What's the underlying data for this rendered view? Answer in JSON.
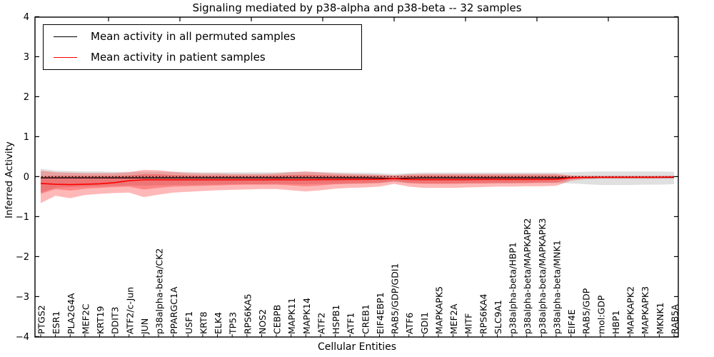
{
  "title": "Signaling mediated by p38-alpha and p38-beta -- 32 samples",
  "axes": {
    "x_label": "Cellular Entities",
    "y_label": "Inferred Activity",
    "y_ticks": [
      {
        "value": 4,
        "label": "4"
      },
      {
        "value": 3,
        "label": "3"
      },
      {
        "value": 2,
        "label": "2"
      },
      {
        "value": 1,
        "label": "1"
      },
      {
        "value": 0,
        "label": "0"
      },
      {
        "value": -1,
        "label": "−1"
      },
      {
        "value": -2,
        "label": "−2"
      },
      {
        "value": -3,
        "label": "−3"
      },
      {
        "value": -4,
        "label": "−4"
      }
    ]
  },
  "legend": {
    "entries": [
      {
        "label": "Mean activity in all permuted samples",
        "color": "#000000"
      },
      {
        "label": "Mean activity in patient samples",
        "color": "#ff0000"
      }
    ]
  },
  "colors": {
    "permuted_line": "#000000",
    "patient_line": "#ff0000",
    "permuted_band": "rgba(0,0,0,0.12)",
    "patient_band_outer": "rgba(255,0,0,0.28)",
    "patient_band_inner": "rgba(255,0,0,0.27)",
    "zero_line": "#000000",
    "frame": "#000000"
  },
  "chart_data": {
    "type": "line",
    "title": "Signaling mediated by p38-alpha and p38-beta -- 32 samples",
    "xlabel": "Cellular Entities",
    "ylabel": "Inferred Activity",
    "ylim": [
      -4,
      4
    ],
    "zero_line_dotted": true,
    "legend_position": "upper left",
    "grid": false,
    "categories": [
      "PTGS2",
      "ESR1",
      "PLA2G4A",
      "MEF2C",
      "KRT19",
      "DDIT3",
      "ATF2/c-Jun",
      "JUN",
      "p38alpha-beta/CK2",
      "PPARGC1A",
      "USF1",
      "KRT8",
      "ELK4",
      "TP53",
      "RPS6KA5",
      "NOS2",
      "CEBPB",
      "MAPK11",
      "MAPK14",
      "ATF2",
      "HSPB1",
      "ATF1",
      "CREB1",
      "EIF4EBP1",
      "RAB5/GDP/GDI1",
      "ATF6",
      "GDI1",
      "MAPKAPK5",
      "MEF2A",
      "MITF",
      "RPS6KA4",
      "SLC9A1",
      "p38alpha-beta/HBP1",
      "p38alpha-beta/MAPKAPK2",
      "p38alpha-beta/MAPKAPK3",
      "p38alpha-beta/MNK1",
      "EIF4E",
      "RAB5/GDP",
      "mol:GDP",
      "HBP1",
      "MAPKAPK2",
      "MAPKAPK3",
      "MKNK1",
      "RAB5A"
    ],
    "series": [
      {
        "name": "Mean activity in all permuted samples",
        "color": "#000000",
        "values": [
          -0.03,
          -0.03,
          -0.03,
          -0.03,
          -0.03,
          -0.03,
          -0.03,
          -0.03,
          -0.03,
          -0.03,
          -0.03,
          -0.03,
          -0.03,
          -0.03,
          -0.03,
          -0.03,
          -0.03,
          -0.03,
          -0.03,
          -0.03,
          -0.03,
          -0.03,
          -0.03,
          -0.035,
          -0.045,
          -0.035,
          -0.03,
          -0.03,
          -0.03,
          -0.03,
          -0.03,
          -0.03,
          -0.03,
          -0.03,
          -0.03,
          -0.03,
          -0.025,
          -0.025,
          -0.02,
          -0.02,
          -0.02,
          -0.02,
          -0.02,
          -0.02
        ]
      },
      {
        "name": "Mean activity in patient samples",
        "color": "#ff0000",
        "values": [
          -0.17,
          -0.19,
          -0.2,
          -0.19,
          -0.18,
          -0.15,
          -0.1,
          -0.08,
          -0.08,
          -0.08,
          -0.08,
          -0.08,
          -0.08,
          -0.08,
          -0.08,
          -0.08,
          -0.075,
          -0.08,
          -0.08,
          -0.075,
          -0.075,
          -0.07,
          -0.07,
          -0.065,
          -0.05,
          -0.07,
          -0.075,
          -0.075,
          -0.075,
          -0.075,
          -0.07,
          -0.07,
          -0.07,
          -0.07,
          -0.07,
          -0.065,
          -0.03,
          -0.02,
          -0.015,
          -0.015,
          -0.015,
          -0.015,
          -0.015,
          -0.01
        ]
      }
    ],
    "bands": [
      {
        "name": "permuted-range",
        "fill": "rgba(0,0,0,0.12)",
        "upper": [
          0.2,
          0.15,
          0.14,
          0.13,
          0.13,
          0.12,
          0.12,
          0.12,
          0.12,
          0.12,
          0.12,
          0.11,
          0.11,
          0.11,
          0.11,
          0.11,
          0.11,
          0.12,
          0.12,
          0.11,
          0.11,
          0.1,
          0.1,
          0.09,
          0.07,
          0.09,
          0.1,
          0.1,
          0.1,
          0.1,
          0.1,
          0.1,
          0.1,
          0.1,
          0.1,
          0.1,
          0.11,
          0.12,
          0.13,
          0.13,
          0.13,
          0.13,
          0.13,
          0.12
        ],
        "lower": [
          -0.4,
          -0.28,
          -0.26,
          -0.25,
          -0.24,
          -0.23,
          -0.22,
          -0.22,
          -0.22,
          -0.21,
          -0.21,
          -0.2,
          -0.2,
          -0.19,
          -0.19,
          -0.19,
          -0.18,
          -0.19,
          -0.19,
          -0.18,
          -0.18,
          -0.17,
          -0.17,
          -0.16,
          -0.13,
          -0.16,
          -0.17,
          -0.17,
          -0.17,
          -0.17,
          -0.17,
          -0.17,
          -0.17,
          -0.16,
          -0.16,
          -0.16,
          -0.17,
          -0.19,
          -0.21,
          -0.21,
          -0.21,
          -0.2,
          -0.2,
          -0.19
        ]
      },
      {
        "name": "patient-range-outer",
        "fill": "rgba(255,0,0,0.28)",
        "upper": [
          0.15,
          0.11,
          0.1,
          0.09,
          0.09,
          0.09,
          0.11,
          0.17,
          0.16,
          0.12,
          0.09,
          0.08,
          0.08,
          0.07,
          0.07,
          0.07,
          0.08,
          0.11,
          0.13,
          0.11,
          0.08,
          0.07,
          0.06,
          0.05,
          0.035,
          0.06,
          0.07,
          0.07,
          0.07,
          0.07,
          0.07,
          0.07,
          0.07,
          0.07,
          0.07,
          0.07,
          0.03,
          0.02,
          0.02,
          0.02,
          0.02,
          0.02,
          0.02,
          0.02
        ],
        "lower": [
          -0.66,
          -0.48,
          -0.54,
          -0.46,
          -0.43,
          -0.41,
          -0.4,
          -0.51,
          -0.45,
          -0.4,
          -0.38,
          -0.36,
          -0.34,
          -0.33,
          -0.32,
          -0.31,
          -0.31,
          -0.34,
          -0.37,
          -0.34,
          -0.3,
          -0.28,
          -0.27,
          -0.25,
          -0.18,
          -0.25,
          -0.28,
          -0.28,
          -0.28,
          -0.27,
          -0.26,
          -0.25,
          -0.25,
          -0.24,
          -0.24,
          -0.23,
          -0.1,
          -0.06,
          -0.05,
          -0.05,
          -0.05,
          -0.05,
          -0.05,
          -0.04
        ]
      },
      {
        "name": "patient-range-inner",
        "fill": "rgba(255,0,0,0.27)",
        "upper": [
          0.01,
          0.02,
          0.02,
          0.02,
          0.02,
          0.02,
          0.03,
          0.06,
          0.06,
          0.04,
          0.03,
          0.02,
          0.02,
          0.02,
          0.02,
          0.02,
          0.03,
          0.04,
          0.05,
          0.04,
          0.03,
          0.02,
          0.02,
          0.02,
          0.01,
          0.02,
          0.03,
          0.03,
          0.03,
          0.03,
          0.03,
          0.03,
          0.03,
          0.03,
          0.03,
          0.03,
          0.01,
          0.0,
          0.0,
          0.0,
          0.0,
          0.0,
          0.0,
          0.0
        ],
        "lower": [
          -0.43,
          -0.31,
          -0.35,
          -0.3,
          -0.28,
          -0.26,
          -0.25,
          -0.32,
          -0.28,
          -0.25,
          -0.24,
          -0.23,
          -0.22,
          -0.21,
          -0.2,
          -0.2,
          -0.2,
          -0.22,
          -0.24,
          -0.22,
          -0.19,
          -0.18,
          -0.17,
          -0.16,
          -0.11,
          -0.16,
          -0.18,
          -0.18,
          -0.18,
          -0.17,
          -0.17,
          -0.16,
          -0.16,
          -0.16,
          -0.15,
          -0.15,
          -0.06,
          -0.03,
          -0.03,
          -0.03,
          -0.03,
          -0.03,
          -0.03,
          -0.02
        ]
      }
    ]
  }
}
